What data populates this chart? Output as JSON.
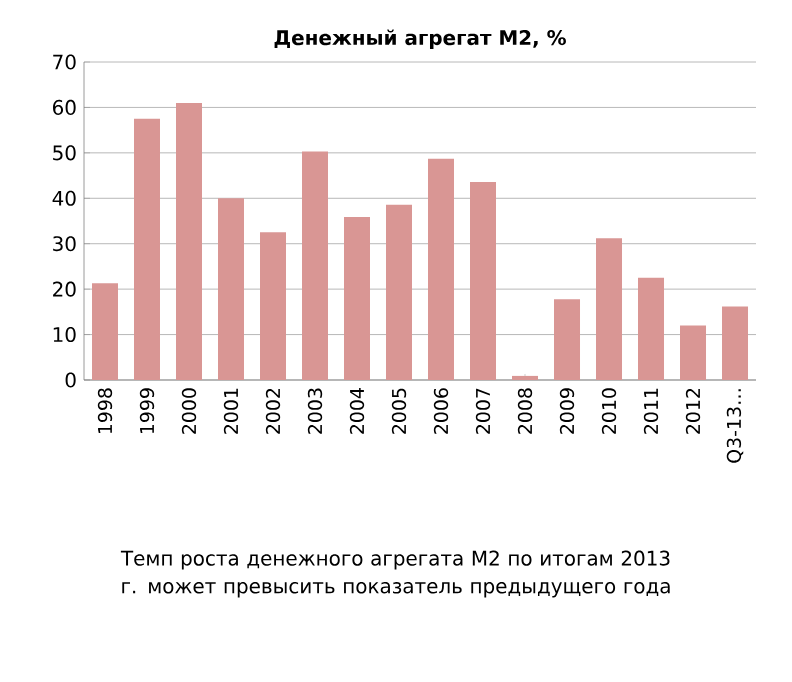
{
  "chart_data": {
    "type": "bar",
    "title": "Денежный агрегат М2, %",
    "categories": [
      "1998",
      "1999",
      "2000",
      "2001",
      "2002",
      "2003",
      "2004",
      "2005",
      "2006",
      "2007",
      "2008",
      "2009",
      "2010",
      "2011",
      "2012",
      "Q3-13…"
    ],
    "values": [
      21.3,
      57.5,
      61,
      40,
      32.5,
      50.3,
      35.9,
      38.6,
      48.7,
      43.6,
      0.9,
      17.8,
      31.2,
      22.5,
      12,
      16.2
    ],
    "color": "#d99694",
    "ylim": [
      0,
      70
    ],
    "yticks": [
      0,
      10,
      20,
      30,
      40,
      50,
      60,
      70
    ],
    "grid": "y",
    "annotations": [
      "Темп роста денежного агрегата М2 по итогам 2013 г. может превысить показатель предыдущего года"
    ]
  }
}
